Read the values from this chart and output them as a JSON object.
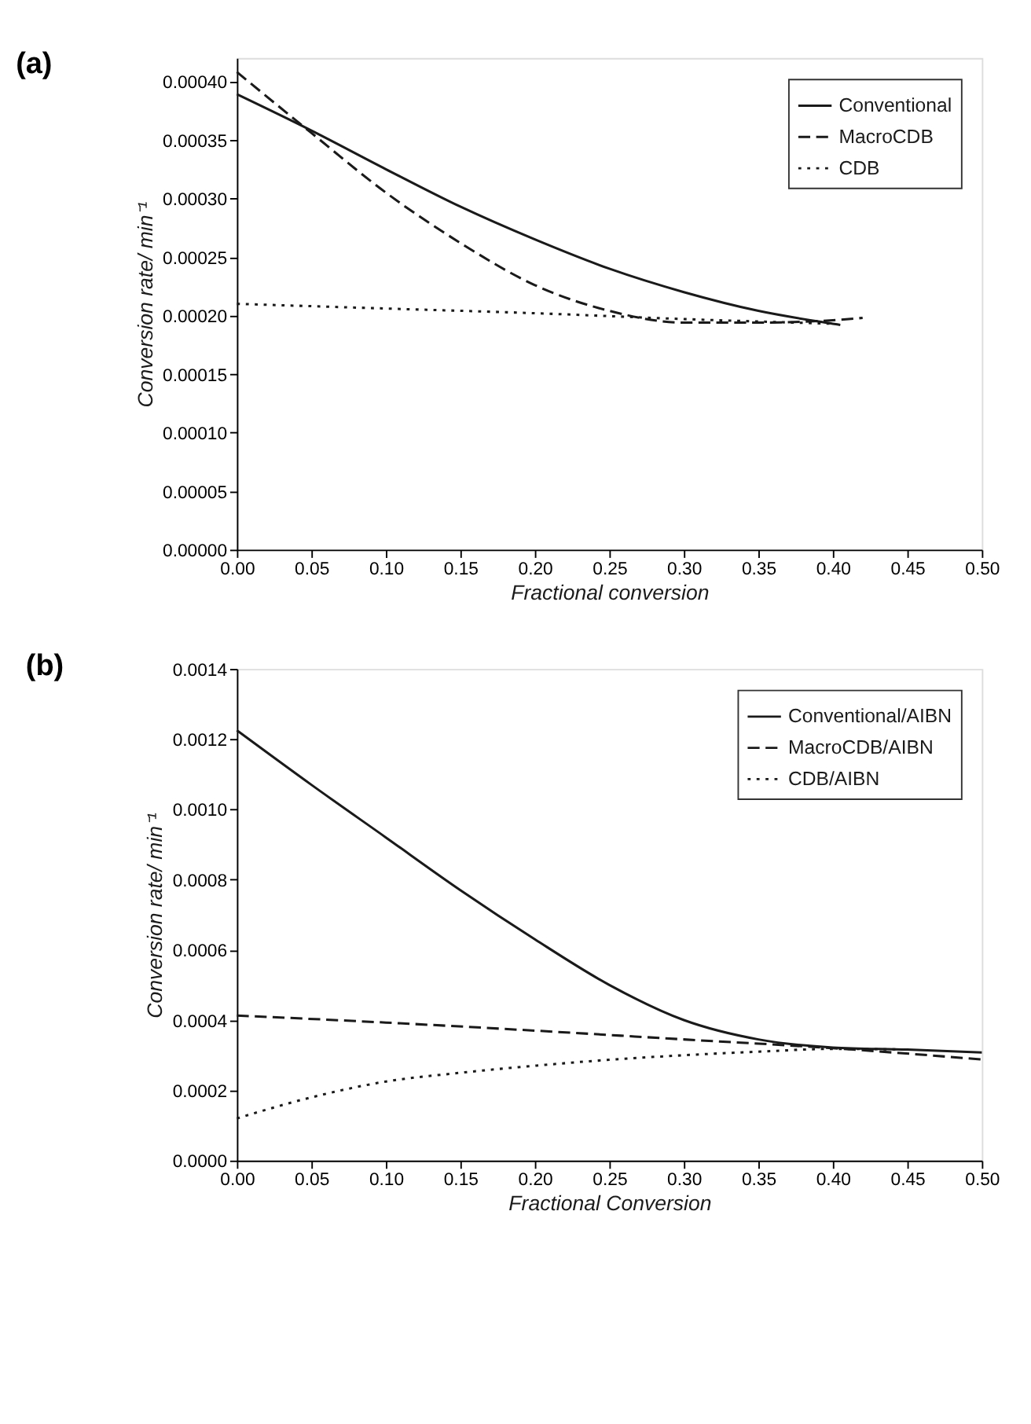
{
  "chart_data": [
    {
      "type": "line",
      "title": "(a)",
      "xlabel": "Fractional conversion",
      "ylabel": "Conversion rate/ min⁻¹",
      "legend": "top right",
      "grid": false,
      "xlim": [
        0,
        0.5
      ],
      "xticks": [
        {
          "value": 0,
          "label": "0.00"
        },
        {
          "value": 0.05,
          "label": "0.05"
        },
        {
          "value": 0.1,
          "label": "0.10"
        },
        {
          "value": 0.15,
          "label": "0.15"
        },
        {
          "value": 0.2,
          "label": "0.20"
        },
        {
          "value": 0.25,
          "label": "0.25"
        },
        {
          "value": 0.3,
          "label": "0.30"
        },
        {
          "value": 0.35,
          "label": "0.35"
        },
        {
          "value": 0.4,
          "label": "0.40"
        },
        {
          "value": 0.45,
          "label": "0.45"
        },
        {
          "value": 0.5,
          "label": "0.50"
        }
      ],
      "ylim": [
        0,
        0.00042
      ],
      "yticks": [
        {
          "value": 0,
          "label": "0.00000"
        },
        {
          "value": 5e-05,
          "label": "0.00005"
        },
        {
          "value": 0.0001,
          "label": "0.00010"
        },
        {
          "value": 0.00015,
          "label": "0.00015"
        },
        {
          "value": 0.0002,
          "label": "0.00020"
        },
        {
          "value": 0.00025,
          "label": "0.00025"
        },
        {
          "value": 0.0003,
          "label": "0.00030"
        },
        {
          "value": 0.00035,
          "label": "0.00035"
        },
        {
          "value": 0.0004,
          "label": "0.00040"
        }
      ],
      "series": [
        {
          "name": "Conventional",
          "color": "#1a1a1a",
          "line_style": "solid",
          "x": [
            0,
            0.05,
            0.1,
            0.15,
            0.2,
            0.25,
            0.3,
            0.35,
            0.4,
            0.405
          ],
          "values": [
            0.000389,
            0.000358,
            0.000325,
            0.000293,
            0.000265,
            0.00024,
            0.00022,
            0.000204,
            0.000193,
            0.000192
          ]
        },
        {
          "name": "MacroCDB",
          "color": "#1a1a1a",
          "line_style": "dashed",
          "x": [
            0,
            0.05,
            0.1,
            0.15,
            0.2,
            0.25,
            0.3,
            0.35,
            0.4,
            0.42
          ],
          "values": [
            0.000408,
            0.000356,
            0.000305,
            0.000262,
            0.000226,
            0.000204,
            0.000194,
            0.000194,
            0.000196,
            0.000198
          ]
        },
        {
          "name": "CDB",
          "color": "#1a1a1a",
          "line_style": "dotted",
          "x": [
            0,
            0.1,
            0.2,
            0.3,
            0.4
          ],
          "values": [
            0.00021,
            0.000206,
            0.000202,
            0.000197,
            0.000193
          ]
        }
      ]
    },
    {
      "type": "line",
      "title": "(b)",
      "xlabel": "Fractional Conversion",
      "ylabel": "Conversion rate/ min⁻¹",
      "legend": "top right",
      "grid": false,
      "xlim": [
        0,
        0.5
      ],
      "xticks": [
        {
          "value": 0,
          "label": "0.00"
        },
        {
          "value": 0.05,
          "label": "0.05"
        },
        {
          "value": 0.1,
          "label": "0.10"
        },
        {
          "value": 0.15,
          "label": "0.15"
        },
        {
          "value": 0.2,
          "label": "0.20"
        },
        {
          "value": 0.25,
          "label": "0.25"
        },
        {
          "value": 0.3,
          "label": "0.30"
        },
        {
          "value": 0.35,
          "label": "0.35"
        },
        {
          "value": 0.4,
          "label": "0.40"
        },
        {
          "value": 0.45,
          "label": "0.45"
        },
        {
          "value": 0.5,
          "label": "0.50"
        }
      ],
      "ylim": [
        0,
        0.0014
      ],
      "yticks": [
        {
          "value": 0,
          "label": "0.0000"
        },
        {
          "value": 0.0002,
          "label": "0.0002"
        },
        {
          "value": 0.0004,
          "label": "0.0004"
        },
        {
          "value": 0.0006,
          "label": "0.0006"
        },
        {
          "value": 0.0008,
          "label": "0.0008"
        },
        {
          "value": 0.001,
          "label": "0.0010"
        },
        {
          "value": 0.0012,
          "label": "0.0012"
        },
        {
          "value": 0.0014,
          "label": "0.0014"
        }
      ],
      "series": [
        {
          "name": "Conventional/AIBN",
          "color": "#1a1a1a",
          "line_style": "solid",
          "x": [
            0,
            0.05,
            0.1,
            0.15,
            0.2,
            0.25,
            0.3,
            0.35,
            0.4,
            0.45,
            0.5
          ],
          "values": [
            0.001225,
            0.00107,
            0.00092,
            0.00077,
            0.00063,
            0.0005,
            0.0004,
            0.000345,
            0.000322,
            0.000316,
            0.000308
          ]
        },
        {
          "name": "MacroCDB/AIBN",
          "color": "#1a1a1a",
          "line_style": "dashed",
          "x": [
            0,
            0.1,
            0.2,
            0.3,
            0.4,
            0.5
          ],
          "values": [
            0.000413,
            0.000393,
            0.00037,
            0.000345,
            0.00032,
            0.000288
          ]
        },
        {
          "name": "CDB/AIBN",
          "color": "#1a1a1a",
          "line_style": "dotted",
          "x": [
            0,
            0.05,
            0.1,
            0.15,
            0.2,
            0.25,
            0.3,
            0.35,
            0.4,
            0.45
          ],
          "values": [
            0.00012,
            0.00018,
            0.000225,
            0.00025,
            0.00027,
            0.000287,
            0.0003,
            0.00031,
            0.000318,
            0.000316
          ]
        }
      ]
    }
  ]
}
